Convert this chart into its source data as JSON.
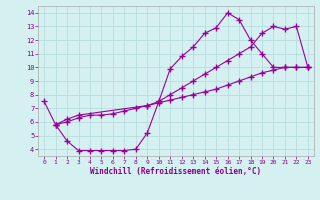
{
  "xlabel": "Windchill (Refroidissement éolien,°C)",
  "background_color": "#d4f0f0",
  "grid_color": "#b8dede",
  "line_color": "#990099",
  "xlim": [
    -0.5,
    23.5
  ],
  "ylim": [
    3.5,
    14.5
  ],
  "xticks": [
    0,
    1,
    2,
    3,
    4,
    5,
    6,
    7,
    8,
    9,
    10,
    11,
    12,
    13,
    14,
    15,
    16,
    17,
    18,
    19,
    20,
    21,
    22,
    23
  ],
  "yticks": [
    4,
    5,
    6,
    7,
    8,
    9,
    10,
    11,
    12,
    13,
    14
  ],
  "line1_x": [
    0,
    1,
    2,
    3,
    4,
    5,
    6,
    7,
    8,
    9,
    10,
    11,
    12,
    13,
    14,
    15,
    16,
    17,
    18,
    19,
    20,
    21,
    22,
    23
  ],
  "line1_y": [
    7.5,
    5.8,
    4.6,
    3.9,
    3.9,
    3.9,
    3.9,
    3.9,
    4.0,
    5.2,
    7.5,
    9.9,
    10.8,
    11.5,
    12.5,
    12.9,
    14.0,
    13.5,
    12.0,
    11.0,
    10.0,
    10.0,
    10.0,
    10.0
  ],
  "line2_x": [
    1,
    2,
    3,
    9,
    10,
    11,
    12,
    13,
    14,
    15,
    16,
    17,
    18,
    19,
    20,
    21,
    22,
    23
  ],
  "line2_y": [
    5.8,
    6.2,
    6.5,
    7.2,
    7.5,
    8.0,
    8.5,
    9.0,
    9.5,
    10.0,
    10.5,
    11.0,
    11.5,
    12.5,
    13.0,
    12.8,
    13.0,
    10.0
  ],
  "line3_x": [
    1,
    2,
    3,
    4,
    5,
    6,
    7,
    8,
    9,
    10,
    11,
    12,
    13,
    14,
    15,
    16,
    17,
    18,
    19,
    20,
    21,
    22,
    23
  ],
  "line3_y": [
    5.8,
    6.0,
    6.3,
    6.5,
    6.5,
    6.6,
    6.8,
    7.0,
    7.2,
    7.4,
    7.6,
    7.8,
    8.0,
    8.2,
    8.4,
    8.7,
    9.0,
    9.3,
    9.6,
    9.8,
    10.0,
    10.0,
    10.0
  ]
}
